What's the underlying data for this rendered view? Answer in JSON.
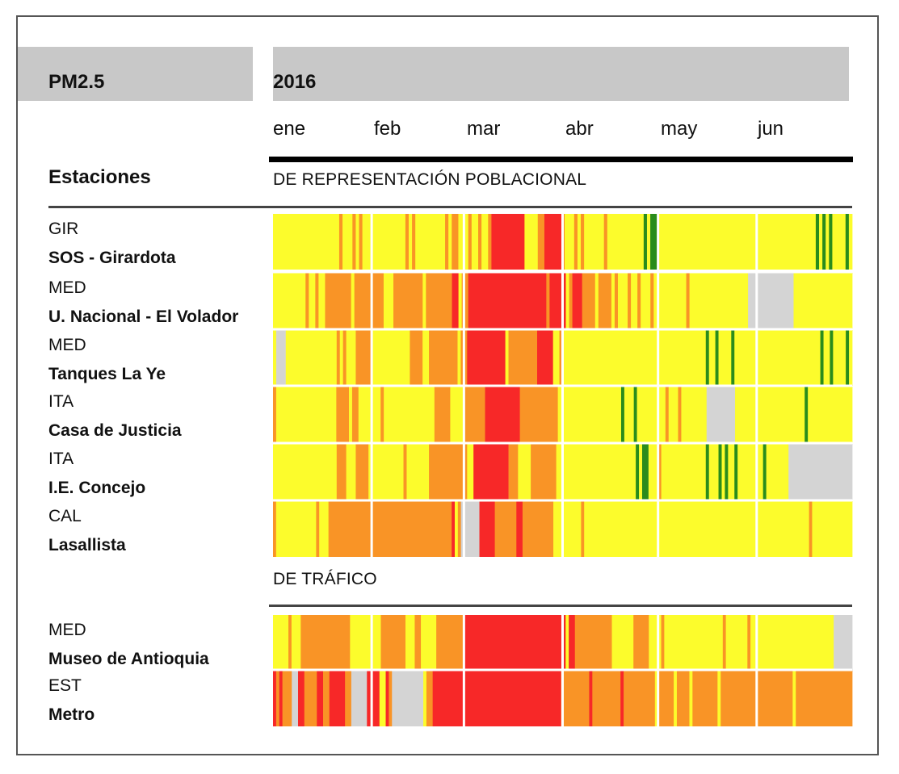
{
  "header": {
    "pollutant": "PM2.5",
    "year": "2016"
  },
  "months": [
    "ene",
    "feb",
    "mar",
    "abr",
    "may",
    "jun"
  ],
  "labels": {
    "stations_heading": "Estaciones",
    "section_population": "DE REPRESENTACIÓN POBLACIONAL",
    "section_traffic": "DE TRÁFICO"
  },
  "colors": {
    "G": "#2a8c1c",
    "Y": "#fcfc2c",
    "O": "#f99426",
    "R": "#f72828",
    "N": "#d4d4d4",
    "header_bg": "#c8c8c8"
  },
  "chart_data": {
    "type": "heatmap",
    "title": "PM2.5",
    "year": "2016",
    "x": "days 1-182 of 2016 (1 Jan - 30 Jun)",
    "categories": [
      "ene",
      "feb",
      "mar",
      "abr",
      "may",
      "jun"
    ],
    "color_legend": {
      "G": "green",
      "Y": "yellow",
      "O": "orange",
      "R": "red",
      "N": "no data"
    },
    "series": [
      {
        "code": "GIR",
        "name": "SOS - Girardota",
        "group": "DE REPRESENTACIÓN POBLACIONAL",
        "days": "YYYYYYYYYYYYYYYYYYYYOYYYOYOYYYYYYYYYYYYYOYOYYYYYYYYYOYOOYYYOYYOYYORRRRRRRRRRYYYYOORRRRRRYYYOYOYYYYYYOYYYYYYYYYYYGYGGYYYYYYYYYYYYYYYYYYYYYYYYYYYYYYYYYYYYYYYYYYYYYYYYGYGYGYYYYGY"
      },
      {
        "code": "MED",
        "name": "U. Nacional - El Volador",
        "group": "DE REPRESENTACIÓN POBLACIONAL",
        "days": "YYYYYYYYYYOYYOYYOOOOOOOOYOOOOOOOOOYYYOOOOOOOOOYOOOOOOOORRYOORRRRRRRRRRRRRRRRRRRRRRRRORRRRRYORRROOOOYOOOOYOYYYOYYOYYYOYYYYYYYYYYOYYYYYYYYYYYYYYYYYYNNNNNNNNNNNNNNYYYYYYYYYYYYYYYYYY"
      },
      {
        "code": "MED",
        "name": "Tanques La Ye",
        "group": "DE REPRESENTACIÓN POBLACIONAL",
        "days": "YNNNYYYYYYYYYYYYYYYYOYOYYYOOOOOYYYYYYYYYYYYOOOOYYOOOOOOOOOYOORRRRRRRRRRRRYOOOOOOOOORRRRRYYOYYYYYYYYYYYYYYYYYYYYYYYYYYYYYYYYYYYYYYYYYYYYYGYYGYYYYGYYYYYYYYYYYYYYYYYYYYYYYYYYYGYYGYYYYGY"
      },
      {
        "code": "ITA",
        "name": "Casa de Justicia",
        "group": "DE REPRESENTACIÓN POBLACIONAL",
        "days": "OYYYYYYYYYYYYYYYYYYYOOOOYOOYYYYYYYOYYYYYYYYYYYYYYYYOOOOOYYYYOOOOOOORRRRRRRRRRROOOOOOOOOOOOYYYYYYYYYYYYYYYYYYYYGYYYGYYYYYYYYYOYYYOYYYYYYYYNNNNNNNNNYYYYYYYYYYYYYYYYYYYYYYGYYYYYYYYYYYYYY"
      },
      {
        "code": "ITA",
        "name": "I.E. Concejo",
        "group": "DE REPRESENTACIÓN POBLACIONAL",
        "days": "YYYYYYYYYYYYYYYYYYYYOOOYYYOOOOYYYYYYYYYYYOYYYYYYYOOOOOOOOOOOOYYRRRRRRRRRRROOOYYYYOOOOOOOOYYYYYYYYYYYYYYYYYYYYYYYYYGYGGYYYOYYYYYYYYYYYYYYGYYYGYGYYGYYYYYYYYGYYYYYYYNNNNNNNNNNNNNNNNNNNN"
      },
      {
        "code": "CAL",
        "name": "Lasallista",
        "group": "DE REPRESENTACIÓN POBLACIONAL",
        "days": "OYYYYYYYYYYYYYOYYYOOOOOOOOOOOOOOOOOOOOOOOOOOOOOOOOOOOOOOOORYONNNNNNRRRRROOOOOOORROOOOOOOOOOYYYYYYYYYOYYYYYYYYYYYYYYYYYYYYYYYYYYYYYYYYYYYYYYYYYYYYYYYYYYYYYYYYYYYYYYYYYYYYYYYYYOYYYYYYYYYYYYY"
      },
      {
        "code": "MED",
        "name": "Museo de Antioquia",
        "group": "DE TRÁFICO",
        "days": "YYYYYOYYYOOOOOOOOOOOOOOOOYYYYYYYYYYOOOOOOOOYYYOOYYYYYOOOOOOOOORRRRRRRRRRRRRRRRRRRRRRRRRRRRRRRRRYRROOOOOOOOOOOOYYYYYYYOOOOOYYYYOYYYYYYYYYYYYYYYYYYYOYYYYYYYOYYYYYYYYYYYYYYYYYYYYYYYYYYYNNNNNN"
      },
      {
        "code": "EST",
        "name": "Metro",
        "group": "DE TRÁFICO",
        "days": "ROROOONNRROOOORROORRRRROONNNNNRRRRYYRONNNNNNNNNNYOORRRRRRRRRRRRRRRRRRRRRRRRRRRRRRRRRRRRRRRRROOOOOOOOOROOOOOOOOOROOOOOOOOOOYOOOOOYOOOOYOOOOOOOOYOOOOOOOOOOOOOOOOOOOOOOOYOOOOOOOOOOOOOOOOOO"
      }
    ]
  }
}
